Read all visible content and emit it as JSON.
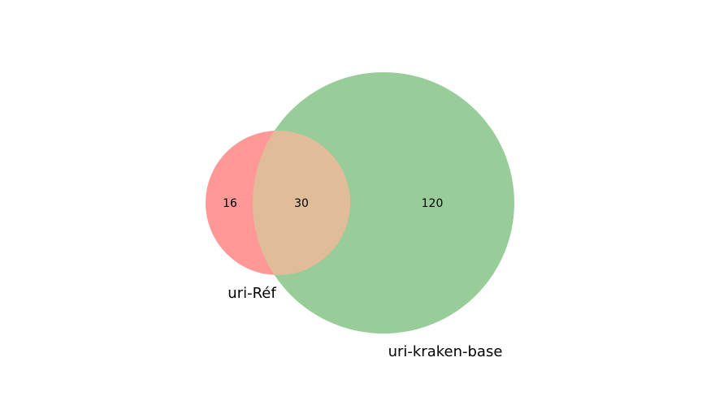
{
  "venn": {
    "type": "venn2",
    "sets": [
      {
        "label": "uri-Réf",
        "color": "#ff9896"
      },
      {
        "label": "uri-kraken-base",
        "color": "#98cc99"
      }
    ],
    "regions": {
      "only_a": "16",
      "both": "30",
      "only_b": "120"
    },
    "overlap_color": "#e0bd98"
  }
}
